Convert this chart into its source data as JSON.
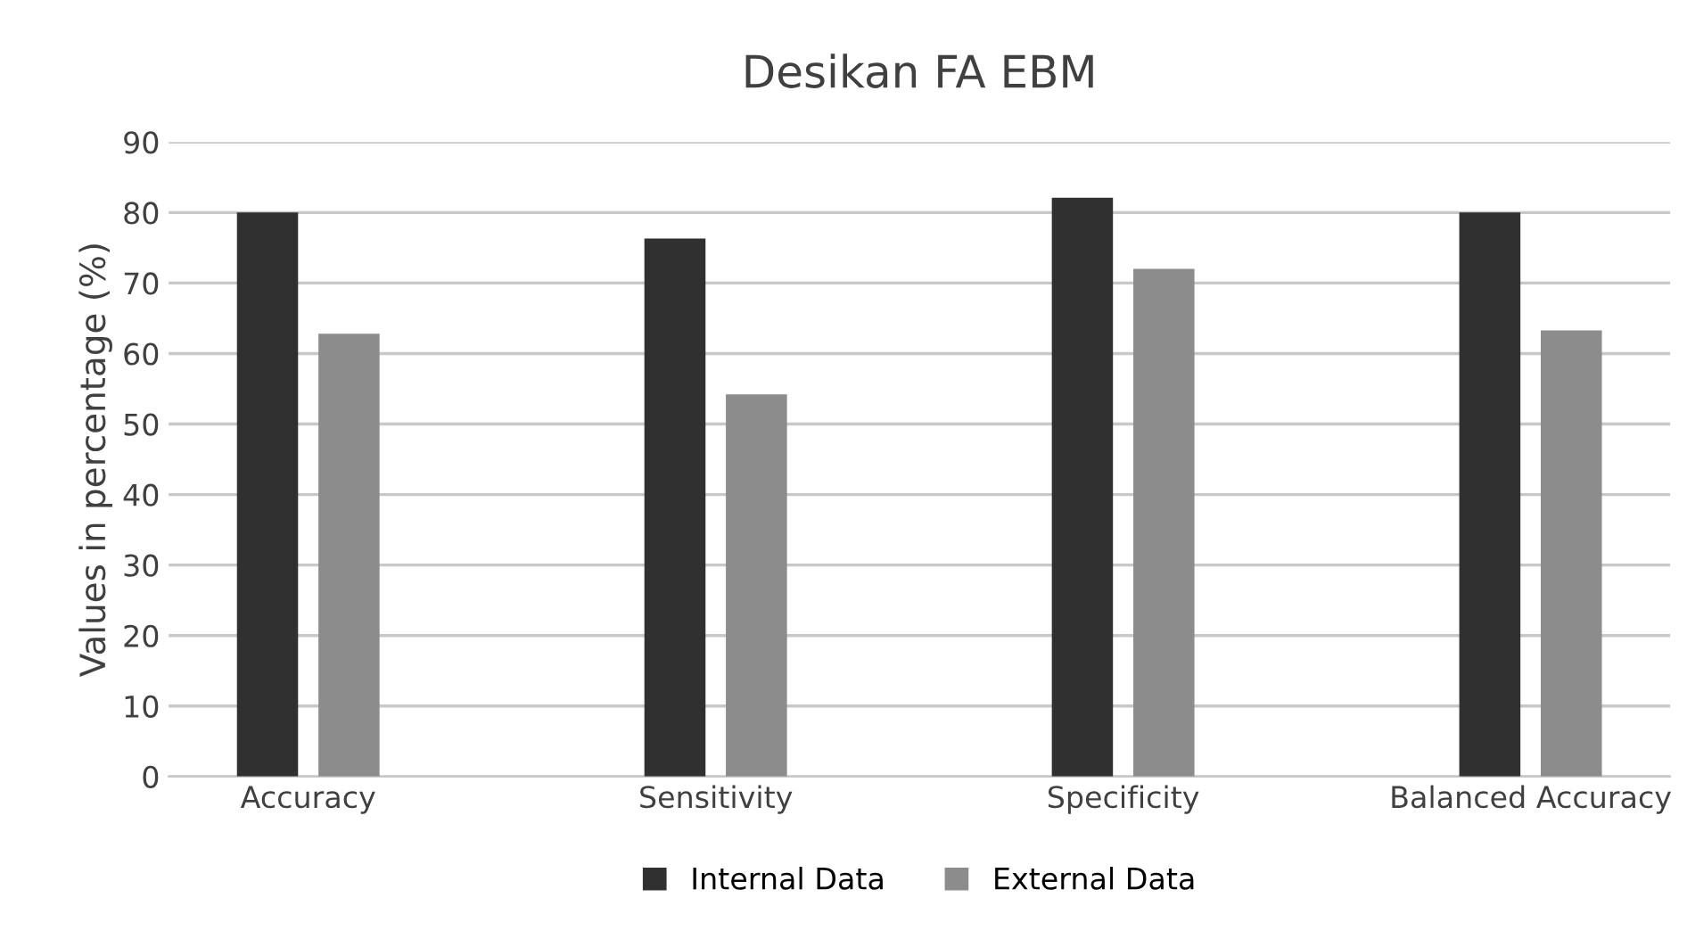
{
  "chart_data": {
    "type": "bar",
    "title": "Desikan FA EBM",
    "ylabel": "Values in percentage (%)",
    "categories": [
      "Accuracy",
      "Sensitivity",
      "Specificity",
      "Balanced Accuracy"
    ],
    "series": [
      {
        "name": "Internal Data",
        "color": "#303030",
        "values": [
          80,
          76.3,
          82.1,
          80
        ]
      },
      {
        "name": "External Data",
        "color": "#8c8c8c",
        "values": [
          62.8,
          54.2,
          72,
          63.3
        ]
      }
    ],
    "ylim": [
      0,
      90
    ],
    "yticks": [
      0,
      10,
      20,
      30,
      40,
      50,
      60,
      70,
      80,
      90
    ],
    "grid": "y",
    "legend": "bottom"
  }
}
